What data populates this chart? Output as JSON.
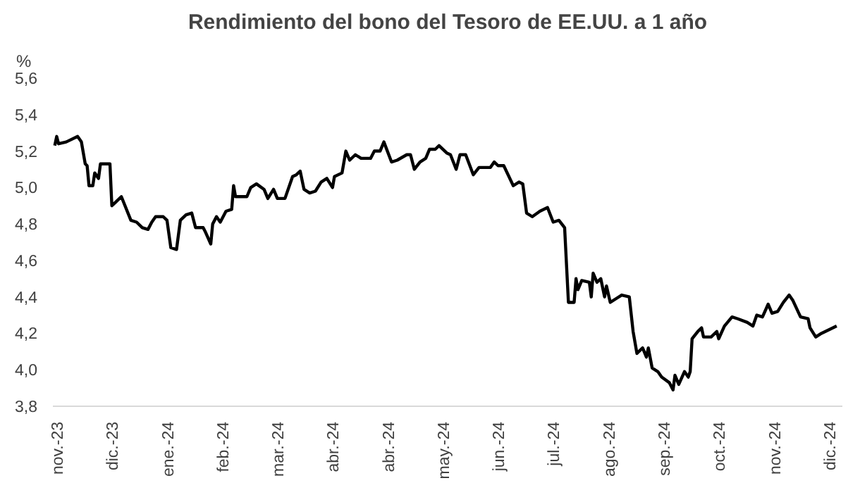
{
  "chart_data": {
    "type": "line",
    "title": "Rendimiento del bono del Tesoro de EE.UU. a 1 año",
    "ylabel": "%",
    "x": [
      "2023-11-06",
      "2023-11-07",
      "2023-11-08",
      "2023-11-12",
      "2023-11-18",
      "2023-11-20",
      "2023-11-22",
      "2023-11-23",
      "2023-11-24",
      "2023-11-26",
      "2023-11-27",
      "2023-11-29",
      "2023-11-30",
      "2023-12-05",
      "2023-12-06",
      "2023-12-08",
      "2023-12-11",
      "2023-12-16",
      "2023-12-19",
      "2023-12-22",
      "2023-12-25",
      "2023-12-27",
      "2023-12-29",
      "2024-01-02",
      "2024-01-04",
      "2024-01-06",
      "2024-01-09",
      "2024-01-11",
      "2024-01-14",
      "2024-01-17",
      "2024-01-19",
      "2024-01-23",
      "2024-01-24",
      "2024-01-27",
      "2024-01-28",
      "2024-01-30",
      "2024-02-01",
      "2024-02-04",
      "2024-02-07",
      "2024-02-08",
      "2024-02-09",
      "2024-02-15",
      "2024-02-17",
      "2024-02-20",
      "2024-02-24",
      "2024-02-26",
      "2024-02-29",
      "2024-03-02",
      "2024-03-06",
      "2024-03-10",
      "2024-03-12",
      "2024-03-14",
      "2024-03-16",
      "2024-03-19",
      "2024-03-22",
      "2024-03-25",
      "2024-03-28",
      "2024-03-31",
      "2024-04-01",
      "2024-04-05",
      "2024-04-07",
      "2024-04-09",
      "2024-04-12",
      "2024-04-15",
      "2024-04-20",
      "2024-04-22",
      "2024-04-25",
      "2024-04-27",
      "2024-05-01",
      "2024-05-04",
      "2024-05-09",
      "2024-05-11",
      "2024-05-13",
      "2024-05-16",
      "2024-05-19",
      "2024-05-21",
      "2024-05-24",
      "2024-05-26",
      "2024-05-30",
      "2024-06-01",
      "2024-06-04",
      "2024-06-06",
      "2024-06-09",
      "2024-06-13",
      "2024-06-16",
      "2024-06-22",
      "2024-06-24",
      "2024-06-26",
      "2024-06-29",
      "2024-07-04",
      "2024-07-07",
      "2024-07-09",
      "2024-07-11",
      "2024-07-14",
      "2024-07-18",
      "2024-07-22",
      "2024-07-25",
      "2024-07-28",
      "2024-07-31",
      "2024-08-02",
      "2024-08-05",
      "2024-08-06",
      "2024-08-07",
      "2024-08-09",
      "2024-08-13",
      "2024-08-14",
      "2024-08-15",
      "2024-08-17",
      "2024-08-19",
      "2024-08-21",
      "2024-08-22",
      "2024-08-24",
      "2024-08-27",
      "2024-08-30",
      "2024-09-03",
      "2024-09-05",
      "2024-09-07",
      "2024-09-10",
      "2024-09-12",
      "2024-09-13",
      "2024-09-15",
      "2024-09-18",
      "2024-09-20",
      "2024-09-24",
      "2024-09-26",
      "2024-09-27",
      "2024-09-29",
      "2024-10-02",
      "2024-10-04",
      "2024-10-05",
      "2024-10-06",
      "2024-10-09",
      "2024-10-11",
      "2024-10-12",
      "2024-10-16",
      "2024-10-19",
      "2024-10-20",
      "2024-10-23",
      "2024-10-27",
      "2024-10-30",
      "2024-11-04",
      "2024-11-07",
      "2024-11-09",
      "2024-11-12",
      "2024-11-15",
      "2024-11-17",
      "2024-11-20",
      "2024-11-23",
      "2024-11-26",
      "2024-11-28",
      "2024-12-02",
      "2024-12-06",
      "2024-12-07",
      "2024-12-10",
      "2024-12-13",
      "2024-12-17",
      "2024-12-21"
    ],
    "series": [
      {
        "color": "#000000",
        "values": [
          5.23,
          5.28,
          5.24,
          5.25,
          5.28,
          5.25,
          5.13,
          5.12,
          5.01,
          5.01,
          5.08,
          5.05,
          5.13,
          5.13,
          4.9,
          4.92,
          4.95,
          4.82,
          4.81,
          4.78,
          4.77,
          4.81,
          4.84,
          4.84,
          4.82,
          4.67,
          4.66,
          4.82,
          4.85,
          4.86,
          4.78,
          4.78,
          4.76,
          4.69,
          4.8,
          4.84,
          4.81,
          4.87,
          4.88,
          5.01,
          4.95,
          4.95,
          5.0,
          5.02,
          4.99,
          4.94,
          4.99,
          4.94,
          4.94,
          5.06,
          5.07,
          5.09,
          4.99,
          4.97,
          4.98,
          5.03,
          5.05,
          5.0,
          5.06,
          5.08,
          5.2,
          5.15,
          5.18,
          5.16,
          5.16,
          5.2,
          5.2,
          5.25,
          5.14,
          5.15,
          5.18,
          5.18,
          5.1,
          5.14,
          5.16,
          5.21,
          5.21,
          5.23,
          5.19,
          5.18,
          5.1,
          5.18,
          5.18,
          5.07,
          5.11,
          5.11,
          5.14,
          5.12,
          5.12,
          5.01,
          5.03,
          5.02,
          4.86,
          4.84,
          4.87,
          4.89,
          4.81,
          4.82,
          4.78,
          4.37,
          4.37,
          4.5,
          4.44,
          4.49,
          4.48,
          4.4,
          4.53,
          4.48,
          4.5,
          4.4,
          4.46,
          4.37,
          4.39,
          4.41,
          4.4,
          4.21,
          4.09,
          4.12,
          4.07,
          4.12,
          4.01,
          3.99,
          3.96,
          3.93,
          3.89,
          3.97,
          3.92,
          3.99,
          3.96,
          3.99,
          4.17,
          4.21,
          4.23,
          4.18,
          4.18,
          4.21,
          4.17,
          4.24,
          4.29,
          4.28,
          4.26,
          4.24,
          4.3,
          4.29,
          4.36,
          4.31,
          4.32,
          4.37,
          4.41,
          4.38,
          4.29,
          4.28,
          4.23,
          4.18,
          4.2,
          4.22,
          4.24
        ]
      }
    ],
    "xlim": [
      "2023-11-05",
      "2024-12-24"
    ],
    "xticks": [
      {
        "value": "2023-11-08",
        "label": "nov.-23"
      },
      {
        "value": "2023-12-07",
        "label": "dic.-23"
      },
      {
        "value": "2024-01-05",
        "label": "ene.-24"
      },
      {
        "value": "2024-02-03",
        "label": "feb.-24"
      },
      {
        "value": "2024-03-03",
        "label": "mar.-24"
      },
      {
        "value": "2024-04-01",
        "label": "abr.-24"
      },
      {
        "value": "2024-04-30",
        "label": "abr.-24"
      },
      {
        "value": "2024-05-29",
        "label": "may.-24"
      },
      {
        "value": "2024-06-27",
        "label": "jun.-24"
      },
      {
        "value": "2024-07-26",
        "label": "jul.-24"
      },
      {
        "value": "2024-08-24",
        "label": "ago.-24"
      },
      {
        "value": "2024-09-22",
        "label": "sep.-24"
      },
      {
        "value": "2024-10-21",
        "label": "oct.-24"
      },
      {
        "value": "2024-11-19",
        "label": "nov.-24"
      },
      {
        "value": "2024-12-18",
        "label": "dic.-24"
      }
    ],
    "ylim": [
      3.8,
      5.6
    ],
    "yticks": [
      {
        "value": 3.8,
        "label": "3,8"
      },
      {
        "value": 4.0,
        "label": "4,0"
      },
      {
        "value": 4.2,
        "label": "4,2"
      },
      {
        "value": 4.4,
        "label": "4,4"
      },
      {
        "value": 4.6,
        "label": "4,6"
      },
      {
        "value": 4.8,
        "label": "4,8"
      },
      {
        "value": 5.0,
        "label": "5,0"
      },
      {
        "value": 5.2,
        "label": "5,2"
      },
      {
        "value": 5.4,
        "label": "5,4"
      },
      {
        "value": 5.6,
        "label": "5,6"
      }
    ],
    "grid": false,
    "marker": "none",
    "line_style": "solid"
  }
}
